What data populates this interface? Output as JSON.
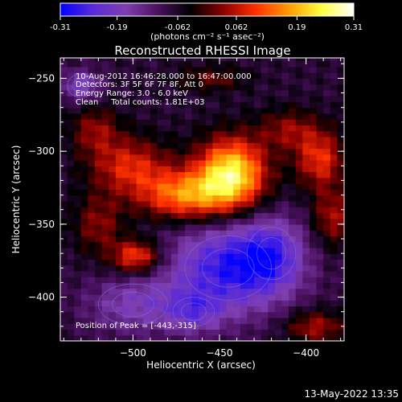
{
  "colorbar": {
    "tick_labels": [
      "-0.31",
      "-0.19",
      "-0.062",
      "0.062",
      "0.19",
      "0.31"
    ],
    "tick_values": [
      -0.31,
      -0.19,
      -0.062,
      0.062,
      0.19,
      0.31
    ],
    "range": [
      -0.31,
      0.31
    ],
    "units_label": "(photons cm⁻² s⁻¹ asec⁻²)",
    "colors": [
      "#0000ff",
      "#5a2ad8",
      "#7f3fb0",
      "#4a1060",
      "#000000",
      "#8b0000",
      "#ff3000",
      "#ff9a00",
      "#ffff40",
      "#ffffff"
    ]
  },
  "plot": {
    "title": "Reconstructed RHESSI Image",
    "xlabel": "Heliocentric X (arcsec)",
    "ylabel": "Heliocentric Y (arcsec)",
    "info_lines": [
      "10-Aug-2012 16:46:28.000 to 16:47:00.000",
      "Detectors: 3F 5F 6F 7F 8F, Att 0",
      "Energy Range: 3.0 - 6.0 keV",
      "Clean     Total counts: 1.81E+03"
    ],
    "peak_text": "Position of Peak = [-443,-315]",
    "timestamp": "13-May-2022 13:35"
  },
  "chart_data": {
    "type": "heatmap",
    "title": "Reconstructed RHESSI Image",
    "xlabel": "Heliocentric X (arcsec)",
    "ylabel": "Heliocentric Y (arcsec)",
    "xlim": [
      -542,
      -378
    ],
    "ylim": [
      -430,
      -236
    ],
    "x_ticks": [
      -500,
      -450,
      -400
    ],
    "y_ticks": [
      -250,
      -300,
      -350,
      -400
    ],
    "x_tick_labels": [
      "−500",
      "−450",
      "−400"
    ],
    "y_tick_labels": [
      "−250",
      "−300",
      "−350",
      "−400"
    ],
    "value_range": [
      -0.31,
      0.31
    ],
    "peak_position": [
      -443,
      -315
    ],
    "sources": [
      {
        "x": -443,
        "y": -315,
        "sx": 14,
        "sy": 17,
        "amp": 0.31
      },
      {
        "x": -470,
        "y": -330,
        "sx": 18,
        "sy": 12,
        "amp": 0.22
      },
      {
        "x": -502,
        "y": -310,
        "sx": 16,
        "sy": 14,
        "amp": 0.15
      },
      {
        "x": -522,
        "y": -285,
        "sx": 10,
        "sy": 12,
        "amp": 0.1
      },
      {
        "x": -498,
        "y": -372,
        "sx": 10,
        "sy": 8,
        "amp": 0.19
      },
      {
        "x": -520,
        "y": -350,
        "sx": 10,
        "sy": 14,
        "amp": 0.1
      },
      {
        "x": -392,
        "y": -305,
        "sx": 10,
        "sy": 14,
        "amp": 0.16
      },
      {
        "x": -410,
        "y": -285,
        "sx": 12,
        "sy": 10,
        "amp": 0.1
      },
      {
        "x": -385,
        "y": -345,
        "sx": 8,
        "sy": 14,
        "amp": 0.12
      },
      {
        "x": -395,
        "y": -420,
        "sx": 12,
        "sy": 8,
        "amp": 0.12
      },
      {
        "x": -455,
        "y": -250,
        "sx": 14,
        "sy": 6,
        "amp": 0.08
      },
      {
        "x": -530,
        "y": -255,
        "sx": 8,
        "sy": 8,
        "amp": -0.12
      },
      {
        "x": -445,
        "y": -380,
        "sx": 25,
        "sy": 22,
        "amp": -0.2
      },
      {
        "x": -420,
        "y": -370,
        "sx": 14,
        "sy": 18,
        "amp": -0.12
      },
      {
        "x": -500,
        "y": -405,
        "sx": 20,
        "sy": 14,
        "amp": -0.1
      },
      {
        "x": -465,
        "y": -410,
        "sx": 12,
        "sy": 10,
        "amp": -0.1
      }
    ],
    "background": -0.07
  }
}
